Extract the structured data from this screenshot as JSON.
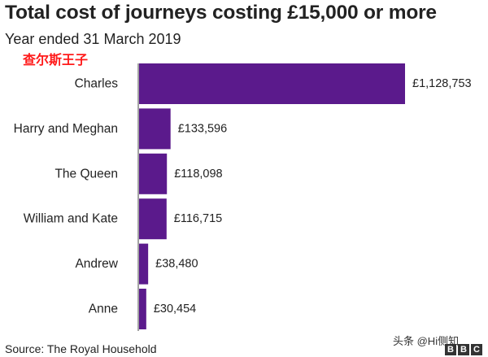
{
  "header": {
    "title": "Total cost of journeys costing £15,000 or more",
    "subtitle": "Year ended 31 March 2019",
    "annotation": "查尔斯王子"
  },
  "footer": {
    "source": "Source: The Royal Household",
    "watermark": "头条 @Hi侧知",
    "logo": [
      "B",
      "B",
      "C"
    ]
  },
  "colors": {
    "bar": "#5b1a8c",
    "axis": "#444444"
  },
  "chart_data": {
    "type": "bar",
    "orientation": "horizontal",
    "title": "Total cost of journeys costing £15,000 or more",
    "subtitle": "Year ended 31 March 2019",
    "categories": [
      "Charles",
      "Harry and Meghan",
      "The Queen",
      "William and Kate",
      "Andrew",
      "Anne"
    ],
    "values": [
      1128753,
      133596,
      118098,
      116715,
      38480,
      30454
    ],
    "value_labels": [
      "£1,128,753",
      "£133,596",
      "£118,098",
      "£116,715",
      "£38,480",
      "£30,454"
    ],
    "unit": "£",
    "xlim": [
      0,
      1128753
    ],
    "grid": false,
    "legend": "none"
  }
}
